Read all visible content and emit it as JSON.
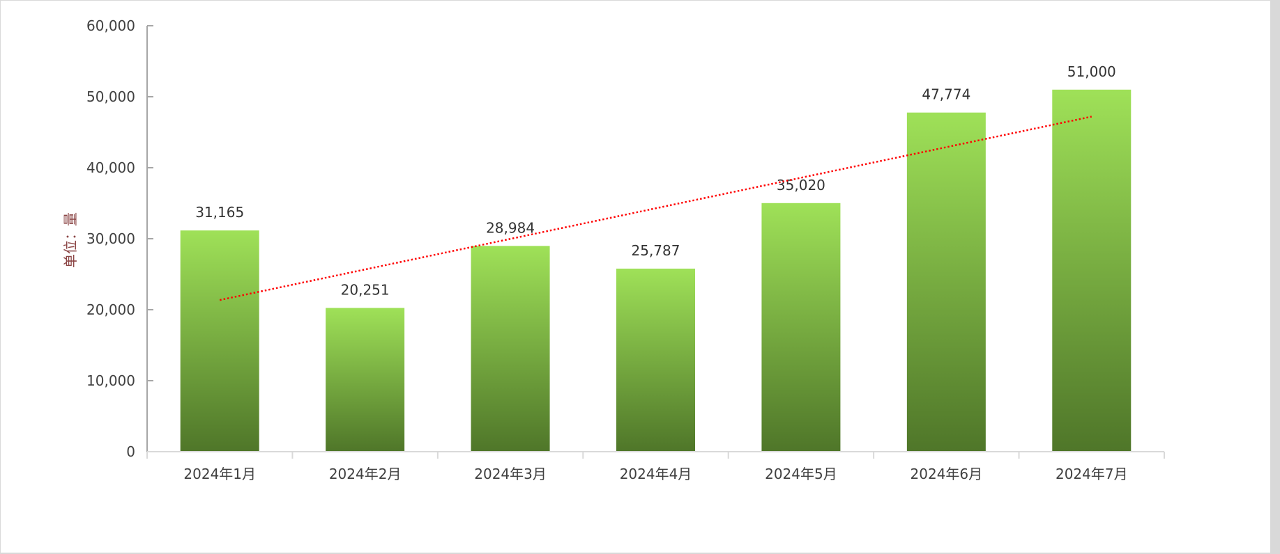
{
  "chart_data": {
    "type": "bar",
    "title": "",
    "xlabel": "",
    "ylabel": "单位：量",
    "ylim": [
      0,
      60000
    ],
    "yticks": [
      0,
      10000,
      20000,
      30000,
      40000,
      50000,
      60000
    ],
    "ytick_labels": [
      "0",
      "10,000",
      "20,000",
      "30,000",
      "40,000",
      "50,000",
      "60,000"
    ],
    "categories": [
      "2024年1月",
      "2024年2月",
      "2024年3月",
      "2024年4月",
      "2024年5月",
      "2024年6月",
      "2024年7月"
    ],
    "values": [
      31165,
      20251,
      28984,
      25787,
      35020,
      47774,
      51000
    ],
    "data_labels": [
      "31,165",
      "20,251",
      "28,984",
      "25,787",
      "35,020",
      "47,774",
      "51,000"
    ],
    "trendline": {
      "type": "linear",
      "color": "#ff0000",
      "style": "dotted"
    },
    "grid": false,
    "legend": "none",
    "colors": {
      "bar_top": "#9fe158",
      "bar_bottom": "#4f7629",
      "axis": "#a6a6a6",
      "text": "#404040",
      "ylabel": "#8b4545"
    }
  }
}
